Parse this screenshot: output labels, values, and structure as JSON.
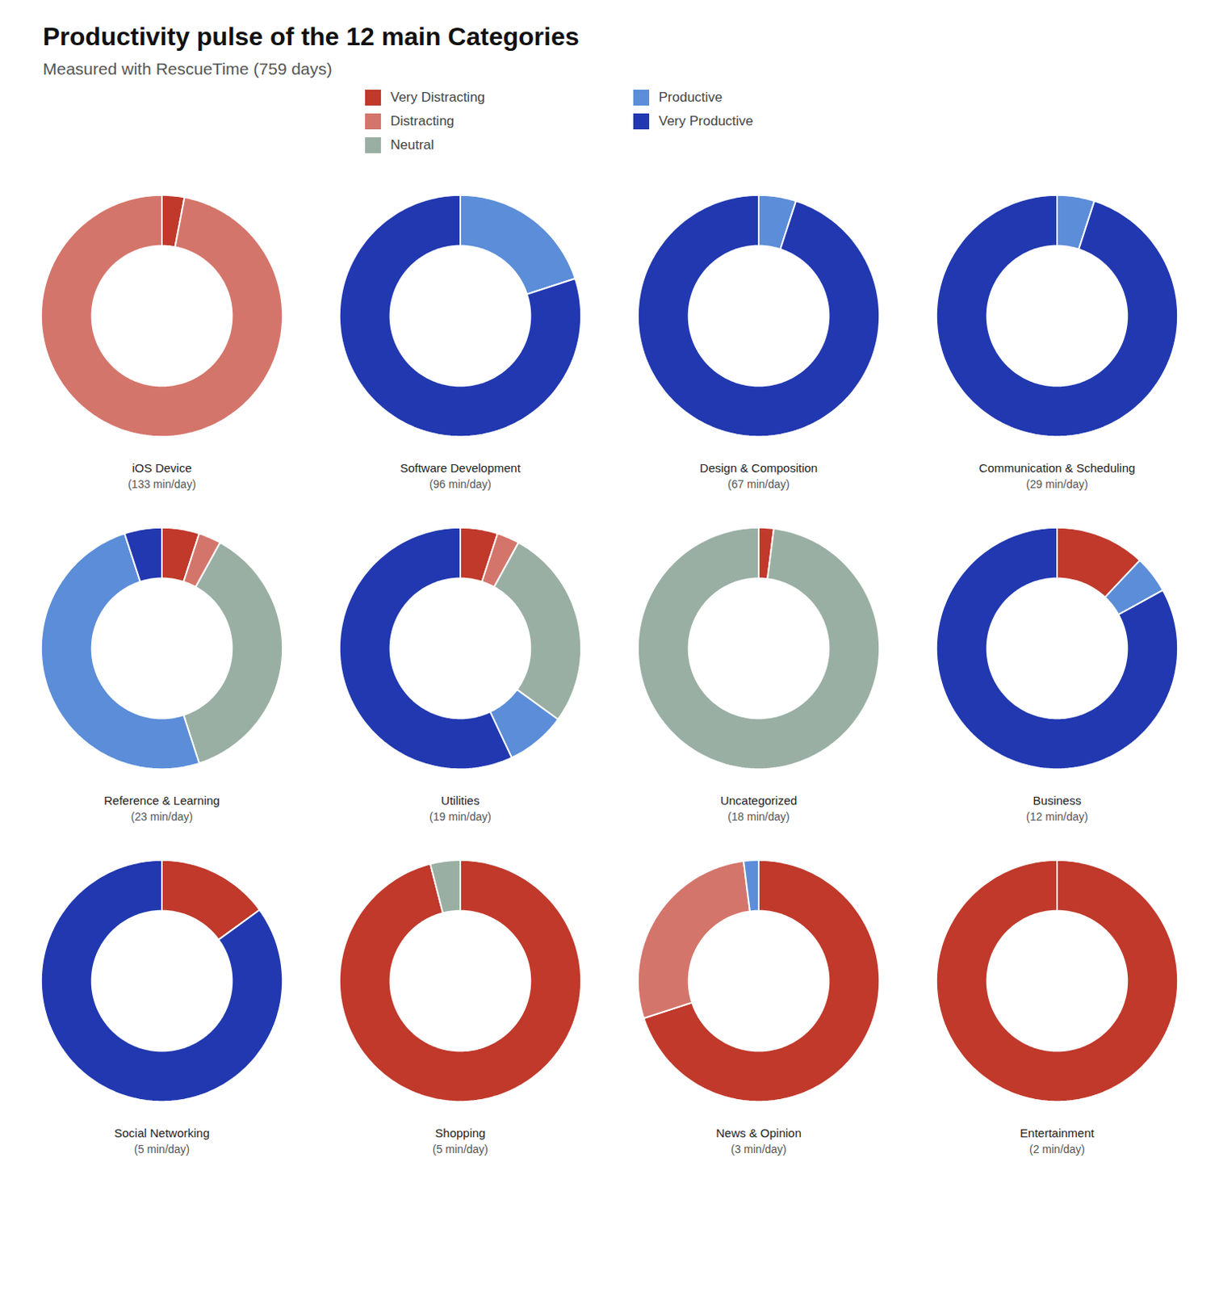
{
  "chart_data": {
    "type": "donut",
    "title": "Productivity pulse of the 12 main Categories",
    "subtitle": "Measured with RescueTime (759 days)",
    "legend": "top",
    "series": [
      {
        "name": "Very Distracting",
        "color": "#c0392b"
      },
      {
        "name": "Distracting",
        "color": "#d4756b"
      },
      {
        "name": "Neutral",
        "color": "#9aafa4"
      },
      {
        "name": "Productive",
        "color": "#5b8dd9"
      },
      {
        "name": "Very Productive",
        "color": "#2138b0"
      }
    ],
    "categories": [
      {
        "name": "iOS Device",
        "minutes": 133,
        "minutes_label": "(133 min/day)",
        "values": [
          3,
          97,
          0,
          0,
          0
        ]
      },
      {
        "name": "Software Development",
        "minutes": 96,
        "minutes_label": "(96 min/day)",
        "values": [
          0,
          0,
          0,
          20,
          80
        ]
      },
      {
        "name": "Design & Composition",
        "minutes": 67,
        "minutes_label": "(67 min/day)",
        "values": [
          0,
          0,
          0,
          5,
          95
        ]
      },
      {
        "name": "Communication & Scheduling",
        "minutes": 29,
        "minutes_label": "(29 min/day)",
        "values": [
          0,
          0,
          0,
          5,
          95
        ]
      },
      {
        "name": "Reference & Learning",
        "minutes": 23,
        "minutes_label": "(23 min/day)",
        "values": [
          5,
          3,
          37,
          50,
          5
        ]
      },
      {
        "name": "Utilities",
        "minutes": 19,
        "minutes_label": "(19 min/day)",
        "values": [
          5,
          3,
          27,
          8,
          57
        ]
      },
      {
        "name": "Uncategorized",
        "minutes": 18,
        "minutes_label": "(18 min/day)",
        "values": [
          2,
          0,
          98,
          0,
          0
        ]
      },
      {
        "name": "Business",
        "minutes": 12,
        "minutes_label": "(12 min/day)",
        "values": [
          12,
          0,
          0,
          5,
          83
        ]
      },
      {
        "name": "Social Networking",
        "minutes": 5,
        "minutes_label": "(5 min/day)",
        "values": [
          15,
          0,
          0,
          0,
          85
        ]
      },
      {
        "name": "Shopping",
        "minutes": 5,
        "minutes_label": "(5 min/day)",
        "values": [
          96,
          0,
          4,
          0,
          0
        ]
      },
      {
        "name": "News & Opinion",
        "minutes": 3,
        "minutes_label": "(3 min/day)",
        "values": [
          70,
          28,
          0,
          2,
          0
        ]
      },
      {
        "name": "Entertainment",
        "minutes": 2,
        "minutes_label": "(2 min/day)",
        "values": [
          100,
          0,
          0,
          0,
          0
        ]
      }
    ]
  }
}
